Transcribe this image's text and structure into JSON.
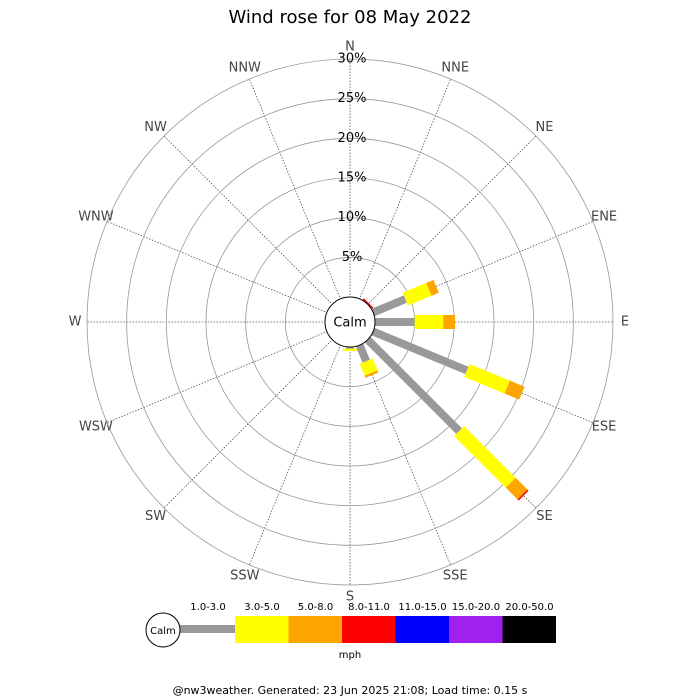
{
  "chart_data": {
    "type": "windrose",
    "title": "Wind rose for 08 May 2022",
    "categories": [
      "N",
      "NNE",
      "NE",
      "ENE",
      "E",
      "ESE",
      "SE",
      "SSE",
      "S",
      "SSW",
      "SW",
      "WSW",
      "W",
      "WNW",
      "NW",
      "NNW"
    ],
    "rlim": [
      0,
      30
    ],
    "rticks": [
      {
        "value": 5,
        "label": "5%"
      },
      {
        "value": 10,
        "label": "10%"
      },
      {
        "value": 15,
        "label": "15%"
      },
      {
        "value": 20,
        "label": "20%"
      },
      {
        "value": 25,
        "label": "25%"
      },
      {
        "value": 30,
        "label": "30%"
      }
    ],
    "calm_label": "Calm",
    "unit_label": "mph",
    "series": [
      {
        "name": "1.0-3.0",
        "color": "#999999",
        "values": [
          0,
          0,
          0,
          4.4,
          5.0,
          12.8,
          16.3,
          2.2,
          0.2,
          0,
          0,
          0,
          0,
          0,
          0,
          0
        ]
      },
      {
        "name": "3.0-5.0",
        "color": "#ffff00",
        "values": [
          0,
          0,
          0,
          3.2,
          3.6,
          5.5,
          9.2,
          1.6,
          0.3,
          0,
          0,
          0,
          0,
          0,
          0,
          0
        ]
      },
      {
        "name": "5.0-8.0",
        "color": "#ffa500",
        "values": [
          0,
          0,
          0,
          1.0,
          1.5,
          2.0,
          2.1,
          0.3,
          0,
          0,
          0,
          0,
          0,
          0,
          0,
          0
        ]
      },
      {
        "name": "8.0-11.0",
        "color": "#ff0000",
        "values": [
          0,
          0,
          0.2,
          0,
          0,
          0,
          0.2,
          0,
          0,
          0,
          0,
          0,
          0,
          0,
          0,
          0
        ]
      },
      {
        "name": "11.0-15.0",
        "color": "#0000ff",
        "values": [
          0,
          0,
          0,
          0,
          0,
          0,
          0,
          0,
          0,
          0,
          0,
          0,
          0,
          0,
          0,
          0
        ]
      },
      {
        "name": "15.0-20.0",
        "color": "#a020f0",
        "values": [
          0,
          0,
          0,
          0,
          0,
          0,
          0,
          0,
          0,
          0,
          0,
          0,
          0,
          0,
          0,
          0
        ]
      },
      {
        "name": "20.0-50.0",
        "color": "#000000",
        "values": [
          0,
          0,
          0,
          0,
          0,
          0,
          0,
          0,
          0,
          0,
          0,
          0,
          0,
          0,
          0,
          0
        ]
      }
    ],
    "footer": "@nw3weather. Generated: 23 Jun 2025 21:08; Load time: 0.15 s"
  }
}
